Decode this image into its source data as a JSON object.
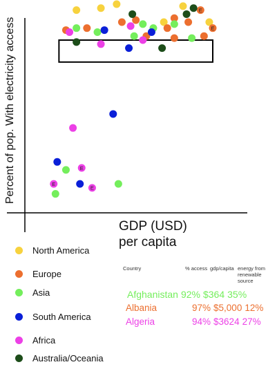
{
  "colors": {
    "North America": "#f7d23e",
    "Europe": "#ec6f2f",
    "Asia": "#74ee5c",
    "South America": "#0a1fd8",
    "Africa": "#ec40e6",
    "Australia/Oceania": "#1d4d1a"
  },
  "chart_data": {
    "type": "scatter",
    "title": "",
    "ylabel": "Percent of pop. With electricity access",
    "xlabel": "GDP (USD)\nper capita",
    "xlim": [
      0,
      100
    ],
    "ylim": [
      0,
      100
    ],
    "grid": false,
    "legend_placement": "bottom-left",
    "points": [
      {
        "x": 22,
        "y": 97,
        "region": "North America"
      },
      {
        "x": 36,
        "y": 98,
        "region": "North America"
      },
      {
        "x": 45,
        "y": 100,
        "region": "North America"
      },
      {
        "x": 83,
        "y": 99,
        "region": "North America"
      },
      {
        "x": 72,
        "y": 91,
        "region": "North America"
      },
      {
        "x": 98,
        "y": 91,
        "region": "North America"
      },
      {
        "x": 16,
        "y": 87,
        "region": "Europe"
      },
      {
        "x": 28,
        "y": 88,
        "region": "Europe"
      },
      {
        "x": 48,
        "y": 91,
        "region": "Europe"
      },
      {
        "x": 56,
        "y": 92,
        "region": "Europe"
      },
      {
        "x": 74,
        "y": 88,
        "region": "Europe"
      },
      {
        "x": 78,
        "y": 93,
        "region": "Europe"
      },
      {
        "x": 93,
        "y": 97,
        "region": "Europe",
        "label": "E"
      },
      {
        "x": 100,
        "y": 88,
        "region": "Europe",
        "label": "E"
      },
      {
        "x": 86,
        "y": 91,
        "region": "Europe"
      },
      {
        "x": 62,
        "y": 84,
        "region": "Europe"
      },
      {
        "x": 78,
        "y": 83,
        "region": "Europe"
      },
      {
        "x": 95,
        "y": 84,
        "region": "Europe"
      },
      {
        "x": 22,
        "y": 88,
        "region": "Asia"
      },
      {
        "x": 34,
        "y": 86,
        "region": "Asia"
      },
      {
        "x": 55,
        "y": 84,
        "region": "Asia"
      },
      {
        "x": 60,
        "y": 90,
        "region": "Asia"
      },
      {
        "x": 66,
        "y": 88,
        "region": "Asia"
      },
      {
        "x": 78,
        "y": 90,
        "region": "Asia"
      },
      {
        "x": 88,
        "y": 83,
        "region": "Asia"
      },
      {
        "x": 10,
        "y": 5,
        "region": "Asia"
      },
      {
        "x": 16,
        "y": 17,
        "region": "Asia"
      },
      {
        "x": 46,
        "y": 10,
        "region": "Asia"
      },
      {
        "x": 38,
        "y": 87,
        "region": "South America"
      },
      {
        "x": 65,
        "y": 86,
        "region": "South America"
      },
      {
        "x": 52,
        "y": 78,
        "region": "South America"
      },
      {
        "x": 43,
        "y": 45,
        "region": "South America"
      },
      {
        "x": 11,
        "y": 21,
        "region": "South America"
      },
      {
        "x": 24,
        "y": 10,
        "region": "South America"
      },
      {
        "x": 18,
        "y": 86,
        "region": "Africa"
      },
      {
        "x": 53,
        "y": 89,
        "region": "Africa"
      },
      {
        "x": 60,
        "y": 82,
        "region": "Africa"
      },
      {
        "x": 36,
        "y": 80,
        "region": "Africa"
      },
      {
        "x": 20,
        "y": 38,
        "region": "Africa"
      },
      {
        "x": 25,
        "y": 18,
        "region": "Africa",
        "label": "E"
      },
      {
        "x": 9,
        "y": 10,
        "region": "Africa",
        "label": "E"
      },
      {
        "x": 31,
        "y": 8,
        "region": "Africa",
        "label": "E"
      },
      {
        "x": 54,
        "y": 95,
        "region": "Australia/Oceania"
      },
      {
        "x": 85,
        "y": 95,
        "region": "Australia/Oceania"
      },
      {
        "x": 89,
        "y": 98,
        "region": "Australia/Oceania"
      },
      {
        "x": 22,
        "y": 81,
        "region": "Australia/Oceania"
      },
      {
        "x": 71,
        "y": 78,
        "region": "Australia/Oceania"
      }
    ],
    "highlight_box": {
      "x": [
        12,
        100
      ],
      "y": [
        71,
        82
      ]
    }
  },
  "legend": [
    {
      "name": "North America",
      "color": "#f7d23e"
    },
    {
      "name": "Europe",
      "color": "#ec6f2f"
    },
    {
      "name": "Asia",
      "color": "#74ee5c"
    },
    {
      "name": "South America",
      "color": "#0a1fd8"
    },
    {
      "name": "Africa",
      "color": "#ec40e6"
    },
    {
      "name": "Australia/Oceania",
      "color": "#1d4d1a"
    }
  ],
  "table": {
    "headers": {
      "country": "Country",
      "access": "% access",
      "gdp": "gdp/capita",
      "energy": "energy from renewable source"
    },
    "rows": [
      {
        "country": "Afghanistan",
        "access": "92%",
        "gdp": "$364",
        "energy": "35%",
        "color": "#74ee5c"
      },
      {
        "country": "Albania",
        "access": "97%",
        "gdp": "$5,000",
        "energy": "12%",
        "color": "#ec6f2f"
      },
      {
        "country": "Algeria",
        "access": "94%",
        "gdp": "$3624",
        "energy": "27%",
        "color": "#ec40e6"
      }
    ]
  }
}
